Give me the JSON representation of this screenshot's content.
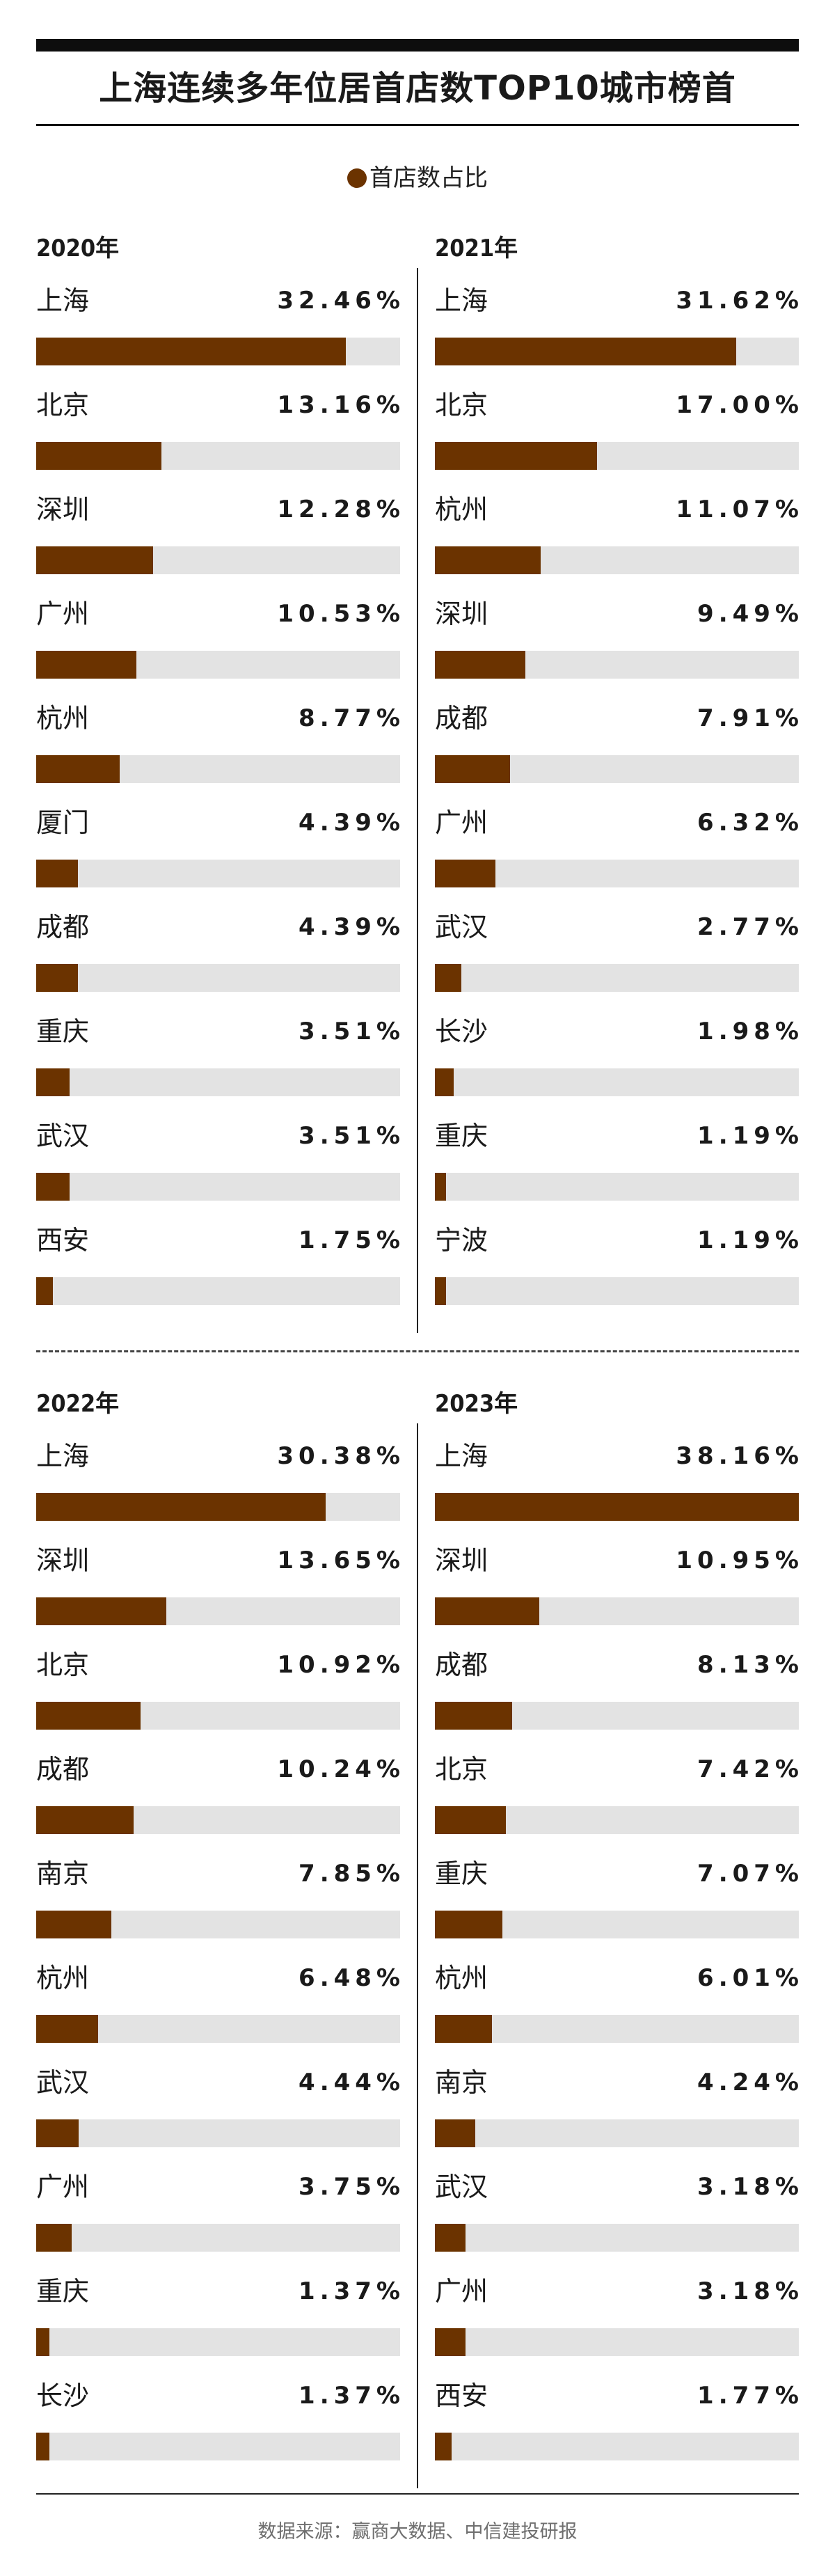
{
  "header": {
    "title": "上海连续多年位居首店数TOP10城市榜首",
    "legend_label": "首店数占比"
  },
  "footer": {
    "source": "数据来源：赢商大数据、中信建投研报"
  },
  "colors": {
    "bar": "#6b3300",
    "track": "#e3e3e3",
    "text": "#1a1a1a"
  },
  "chart_data": [
    {
      "type": "bar",
      "title": "2020年",
      "value_unit": "%",
      "xlim": [
        0,
        38.16
      ],
      "categories": [
        "上海",
        "北京",
        "深圳",
        "广州",
        "杭州",
        "厦门",
        "成都",
        "重庆",
        "武汉",
        "西安"
      ],
      "values": [
        32.46,
        13.16,
        12.28,
        10.53,
        8.77,
        4.39,
        4.39,
        3.51,
        3.51,
        1.75
      ],
      "labels": [
        "32.46%",
        "13.16%",
        "12.28%",
        "10.53%",
        "8.77%",
        "4.39%",
        "4.39%",
        "3.51%",
        "3.51%",
        "1.75%"
      ]
    },
    {
      "type": "bar",
      "title": "2021年",
      "value_unit": "%",
      "xlim": [
        0,
        38.16
      ],
      "categories": [
        "上海",
        "北京",
        "杭州",
        "深圳",
        "成都",
        "广州",
        "武汉",
        "长沙",
        "重庆",
        "宁波"
      ],
      "values": [
        31.62,
        17.0,
        11.07,
        9.49,
        7.91,
        6.32,
        2.77,
        1.98,
        1.19,
        1.19
      ],
      "labels": [
        "31.62%",
        "17.00%",
        "11.07%",
        "9.49%",
        "7.91%",
        "6.32%",
        "2.77%",
        "1.98%",
        "1.19%",
        "1.19%"
      ]
    },
    {
      "type": "bar",
      "title": "2022年",
      "value_unit": "%",
      "xlim": [
        0,
        38.16
      ],
      "categories": [
        "上海",
        "深圳",
        "北京",
        "成都",
        "南京",
        "杭州",
        "武汉",
        "广州",
        "重庆",
        "长沙"
      ],
      "values": [
        30.38,
        13.65,
        10.92,
        10.24,
        7.85,
        6.48,
        4.44,
        3.75,
        1.37,
        1.37
      ],
      "labels": [
        "30.38%",
        "13.65%",
        "10.92%",
        "10.24%",
        "7.85%",
        "6.48%",
        "4.44%",
        "3.75%",
        "1.37%",
        "1.37%"
      ]
    },
    {
      "type": "bar",
      "title": "2023年",
      "value_unit": "%",
      "xlim": [
        0,
        38.16
      ],
      "categories": [
        "上海",
        "深圳",
        "成都",
        "北京",
        "重庆",
        "杭州",
        "南京",
        "武汉",
        "广州",
        "西安"
      ],
      "values": [
        38.16,
        10.95,
        8.13,
        7.42,
        7.07,
        6.01,
        4.24,
        3.18,
        3.18,
        1.77
      ],
      "labels": [
        "38.16%",
        "10.95%",
        "8.13%",
        "7.42%",
        "7.07%",
        "6.01%",
        "4.24%",
        "3.18%",
        "3.18%",
        "1.77%"
      ]
    }
  ]
}
